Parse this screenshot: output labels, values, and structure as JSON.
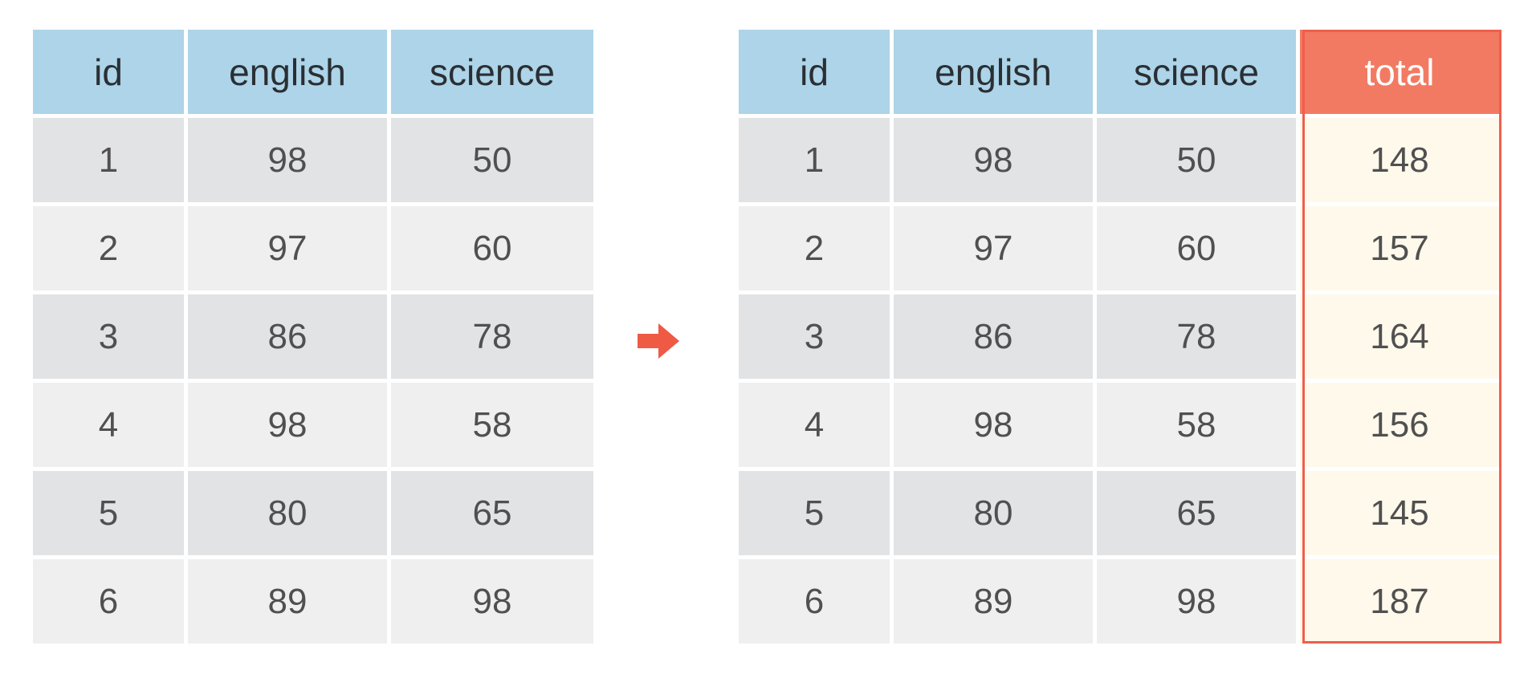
{
  "colors": {
    "header": "#add4e8",
    "row_odd": "#e2e3e5",
    "row_even": "#efefef",
    "new_header": "#f37a62",
    "new_cell": "#fef9eb",
    "highlight_border": "#ef5f4c",
    "arrow": "#ef5a45"
  },
  "before": {
    "columns": [
      "id",
      "english",
      "science"
    ],
    "rows": [
      [
        "1",
        "98",
        "50"
      ],
      [
        "2",
        "97",
        "60"
      ],
      [
        "3",
        "86",
        "78"
      ],
      [
        "4",
        "98",
        "58"
      ],
      [
        "5",
        "80",
        "65"
      ],
      [
        "6",
        "89",
        "98"
      ]
    ]
  },
  "after": {
    "columns": [
      "id",
      "english",
      "science",
      "total"
    ],
    "rows": [
      [
        "1",
        "98",
        "50",
        "148"
      ],
      [
        "2",
        "97",
        "60",
        "157"
      ],
      [
        "3",
        "86",
        "78",
        "164"
      ],
      [
        "4",
        "98",
        "58",
        "156"
      ],
      [
        "5",
        "80",
        "65",
        "145"
      ],
      [
        "6",
        "89",
        "98",
        "187"
      ]
    ]
  },
  "arrow_icon": "arrow-right-icon"
}
